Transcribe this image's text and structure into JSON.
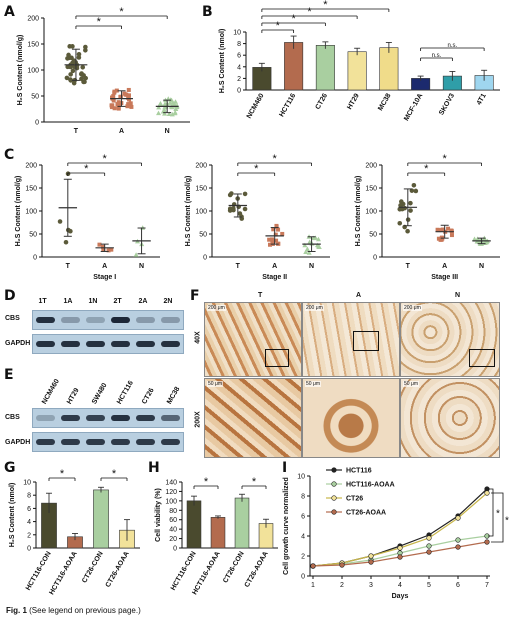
{
  "panel_letters": {
    "A": "A",
    "B": "B",
    "C": "C",
    "D": "D",
    "E": "E",
    "F": "F",
    "G": "G",
    "H": "H",
    "I": "I"
  },
  "sig": "*",
  "ns": "n.s.",
  "h2s_label": "H₂S Content (nmol/g)",
  "h2s_label_b": "H₂S Content (nmol)",
  "caption_label": "Fig. 1",
  "caption_text": "(See legend on previous page.)",
  "chart_data": [
    {
      "id": "A",
      "type": "scatter",
      "categories": [
        "T",
        "A",
        "N"
      ],
      "means": [
        110,
        45,
        30
      ],
      "sd": [
        30,
        15,
        12
      ],
      "ylim": [
        0,
        200
      ],
      "yticks": [
        0,
        50,
        100,
        150,
        200
      ],
      "ylabel": "H₂S Content (nmol/g)",
      "colors": [
        "#5b5a3a",
        "#c9795a",
        "#a9cfa0"
      ],
      "sig_pairs": [
        [
          "T",
          "A"
        ],
        [
          "T",
          "N"
        ]
      ]
    },
    {
      "id": "B",
      "type": "bar",
      "categories": [
        "NCM460",
        "HCT116",
        "CT26",
        "HT29",
        "MC38",
        "MCF-10A",
        "SKOV3",
        "4T1"
      ],
      "values": [
        3.9,
        8.2,
        7.7,
        6.6,
        7.3,
        2.0,
        2.4,
        2.5
      ],
      "errors": [
        0.7,
        1.1,
        0.6,
        0.6,
        0.9,
        0.4,
        0.8,
        0.9
      ],
      "ylim": [
        0,
        10
      ],
      "yticks": [
        0,
        2,
        4,
        6,
        8,
        10
      ],
      "ylabel": "H₂S Content (nmol)",
      "colors": [
        "#4a4a2e",
        "#b36b4e",
        "#a9cfa0",
        "#f2e29a",
        "#f0dc8a",
        "#1c2a6e",
        "#2f9ea8",
        "#9fd6ef"
      ],
      "sig_pairs": [
        [
          "NCM460",
          "HCT116"
        ],
        [
          "NCM460",
          "CT26"
        ],
        [
          "NCM460",
          "HT29"
        ],
        [
          "NCM460",
          "MC38"
        ]
      ],
      "ns_pairs": [
        [
          "MCF-10A",
          "SKOV3"
        ],
        [
          "MCF-10A",
          "4T1"
        ]
      ]
    },
    {
      "id": "C1",
      "type": "scatter",
      "categories": [
        "T",
        "A",
        "N"
      ],
      "means": [
        107,
        20,
        35
      ],
      "sd": [
        62,
        8,
        28
      ],
      "ylim": [
        0,
        200
      ],
      "yticks": [
        0,
        50,
        100,
        150,
        200
      ],
      "xlabel": "Stage I",
      "ylabel": "H₂S Content (nmol/g)",
      "sig_pairs": [
        [
          "T",
          "A"
        ],
        [
          "T",
          "N"
        ]
      ]
    },
    {
      "id": "C2",
      "type": "scatter",
      "categories": [
        "T",
        "A",
        "N"
      ],
      "means": [
        112,
        46,
        28
      ],
      "sd": [
        25,
        18,
        16
      ],
      "ylim": [
        0,
        200
      ],
      "yticks": [
        0,
        50,
        100,
        150,
        200
      ],
      "xlabel": "Stage II",
      "ylabel": "H₂S Content (nmol/g)",
      "sig_pairs": [
        [
          "T",
          "A"
        ],
        [
          "T",
          "N"
        ]
      ]
    },
    {
      "id": "C3",
      "type": "scatter",
      "categories": [
        "T",
        "A",
        "N"
      ],
      "means": [
        108,
        55,
        35
      ],
      "sd": [
        40,
        14,
        6
      ],
      "ylim": [
        0,
        200
      ],
      "yticks": [
        0,
        50,
        100,
        150,
        200
      ],
      "xlabel": "Stage III",
      "ylabel": "H₂S Content (nmol/g)",
      "sig_pairs": [
        [
          "T",
          "A"
        ],
        [
          "T",
          "N"
        ]
      ]
    },
    {
      "id": "G",
      "type": "bar",
      "categories": [
        "HCT116-CON",
        "HCT116-AOAA",
        "CT26-CON",
        "CT26-AOAA"
      ],
      "values": [
        6.8,
        1.7,
        8.8,
        2.7
      ],
      "errors": [
        1.5,
        0.5,
        0.4,
        1.6
      ],
      "ylim": [
        0,
        10
      ],
      "yticks": [
        0,
        2,
        4,
        6,
        8,
        10
      ],
      "ylabel": "H₂S Content (nmol)",
      "colors": [
        "#4a4a2e",
        "#b36b4e",
        "#a9cfa0",
        "#f2e29a"
      ],
      "sig_pairs": [
        [
          "HCT116-CON",
          "HCT116-AOAA"
        ],
        [
          "CT26-CON",
          "CT26-AOAA"
        ]
      ]
    },
    {
      "id": "H",
      "type": "bar",
      "categories": [
        "HCT116-CON",
        "HCT116-AOAA",
        "CT26-CON",
        "CT26-AOAA"
      ],
      "values": [
        100,
        65,
        106,
        52
      ],
      "errors": [
        10,
        3,
        8,
        9
      ],
      "ylim": [
        0,
        140
      ],
      "yticks": [
        0,
        20,
        40,
        60,
        80,
        100,
        120,
        140
      ],
      "ylabel": "Cell viability (%)",
      "colors": [
        "#4a4a2e",
        "#b36b4e",
        "#a9cfa0",
        "#f2e29a"
      ],
      "sig_pairs": [
        [
          "HCT116-CON",
          "HCT116-AOAA"
        ],
        [
          "CT26-CON",
          "CT26-AOAA"
        ]
      ]
    },
    {
      "id": "I",
      "type": "line",
      "x": [
        1,
        2,
        3,
        4,
        5,
        6,
        7
      ],
      "xlabel": "Days",
      "ylabel": "Cell growth curve normalized",
      "ylim": [
        0,
        10
      ],
      "yticks": [
        0,
        2,
        4,
        6,
        8,
        10
      ],
      "series": [
        {
          "name": "HCT116",
          "values": [
            1.0,
            1.3,
            2.0,
            3.0,
            4.1,
            6.0,
            8.7
          ],
          "color": "#222222"
        },
        {
          "name": "HCT116-AOAA",
          "values": [
            1.0,
            1.2,
            1.6,
            2.3,
            3.0,
            3.6,
            4.0
          ],
          "color": "#a9cfa0"
        },
        {
          "name": "CT26",
          "values": [
            1.0,
            1.3,
            2.0,
            2.8,
            3.8,
            5.8,
            8.3
          ],
          "color": "#f2e29a"
        },
        {
          "name": "CT26-AOAA",
          "values": [
            1.0,
            1.1,
            1.4,
            1.9,
            2.4,
            2.9,
            3.4
          ],
          "color": "#b36b4e"
        }
      ]
    }
  ],
  "blot_D": {
    "lanes": [
      "1T",
      "1A",
      "1N",
      "2T",
      "2A",
      "2N"
    ],
    "rows": [
      "CBS",
      "GAPDH"
    ],
    "cbs": [
      0.9,
      0.3,
      0.25,
      0.95,
      0.3,
      0.3
    ],
    "gapdh": [
      0.9,
      0.9,
      0.9,
      0.9,
      0.9,
      0.9
    ]
  },
  "blot_E": {
    "lanes": [
      "NCM460",
      "HT29",
      "SW480",
      "HCT116",
      "CT26",
      "MC38"
    ],
    "rows": [
      "CBS",
      "GAPDH"
    ],
    "cbs": [
      0.25,
      0.85,
      0.8,
      0.9,
      0.85,
      0.6
    ],
    "gapdh": [
      0.85,
      0.85,
      0.85,
      0.85,
      0.85,
      0.85
    ]
  },
  "ihc": {
    "cols": [
      "T",
      "A",
      "N"
    ],
    "rows": [
      "40X",
      "200X"
    ],
    "scale_top": "200 μm",
    "scale_bottom": "50 μm"
  }
}
